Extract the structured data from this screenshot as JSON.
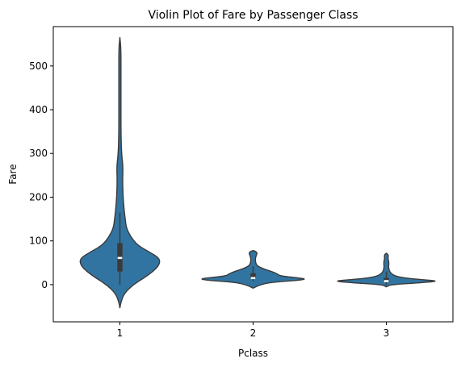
{
  "chart_data": {
    "type": "violin",
    "title": "Violin Plot of Fare by Passenger Class",
    "xlabel": "Pclass",
    "ylabel": "Fare",
    "categories": [
      "1",
      "2",
      "3"
    ],
    "ylim": [
      -85,
      590
    ],
    "yticks": [
      0,
      100,
      200,
      300,
      400,
      500
    ],
    "grid": false,
    "legend": "none",
    "fill_color": "#3274a1",
    "edge_color": "#3a3a3a",
    "violins": [
      {
        "category": "1",
        "min": -53,
        "max": 565,
        "q1": 30,
        "median": 61,
        "q3": 95,
        "whisker_low": 0,
        "whisker_high": 165,
        "density": [
          [
            -53,
            0.0
          ],
          [
            -40,
            0.02
          ],
          [
            -20,
            0.08
          ],
          [
            0,
            0.25
          ],
          [
            15,
            0.45
          ],
          [
            30,
            0.62
          ],
          [
            45,
            0.74
          ],
          [
            60,
            0.75
          ],
          [
            75,
            0.55
          ],
          [
            90,
            0.33
          ],
          [
            110,
            0.2
          ],
          [
            130,
            0.12
          ],
          [
            150,
            0.1
          ],
          [
            170,
            0.08
          ],
          [
            200,
            0.06
          ],
          [
            240,
            0.05
          ],
          [
            270,
            0.06
          ],
          [
            300,
            0.03
          ],
          [
            350,
            0.02
          ],
          [
            420,
            0.02
          ],
          [
            480,
            0.02
          ],
          [
            540,
            0.02
          ],
          [
            565,
            0.0
          ]
        ]
      },
      {
        "category": "2",
        "min": -8,
        "max": 78,
        "q1": 13,
        "median": 15,
        "q3": 26,
        "whisker_low": 8,
        "whisker_high": 42,
        "density": [
          [
            -8,
            0.0
          ],
          [
            -2,
            0.1
          ],
          [
            5,
            0.3
          ],
          [
            10,
            0.85
          ],
          [
            13,
            1.0
          ],
          [
            16,
            0.82
          ],
          [
            20,
            0.5
          ],
          [
            25,
            0.45
          ],
          [
            30,
            0.35
          ],
          [
            35,
            0.22
          ],
          [
            40,
            0.12
          ],
          [
            45,
            0.06
          ],
          [
            55,
            0.04
          ],
          [
            65,
            0.05
          ],
          [
            72,
            0.08
          ],
          [
            76,
            0.05
          ],
          [
            78,
            0.0
          ]
        ]
      },
      {
        "category": "3",
        "min": -5,
        "max": 72,
        "q1": 7.9,
        "median": 8.1,
        "q3": 15.5,
        "whisker_low": 0,
        "whisker_high": 30,
        "density": [
          [
            -5,
            0.0
          ],
          [
            0,
            0.08
          ],
          [
            4,
            0.6
          ],
          [
            8,
            1.0
          ],
          [
            11,
            0.7
          ],
          [
            15,
            0.35
          ],
          [
            20,
            0.16
          ],
          [
            25,
            0.1
          ],
          [
            30,
            0.06
          ],
          [
            40,
            0.04
          ],
          [
            50,
            0.05
          ],
          [
            60,
            0.03
          ],
          [
            68,
            0.04
          ],
          [
            72,
            0.0
          ]
        ]
      }
    ]
  }
}
